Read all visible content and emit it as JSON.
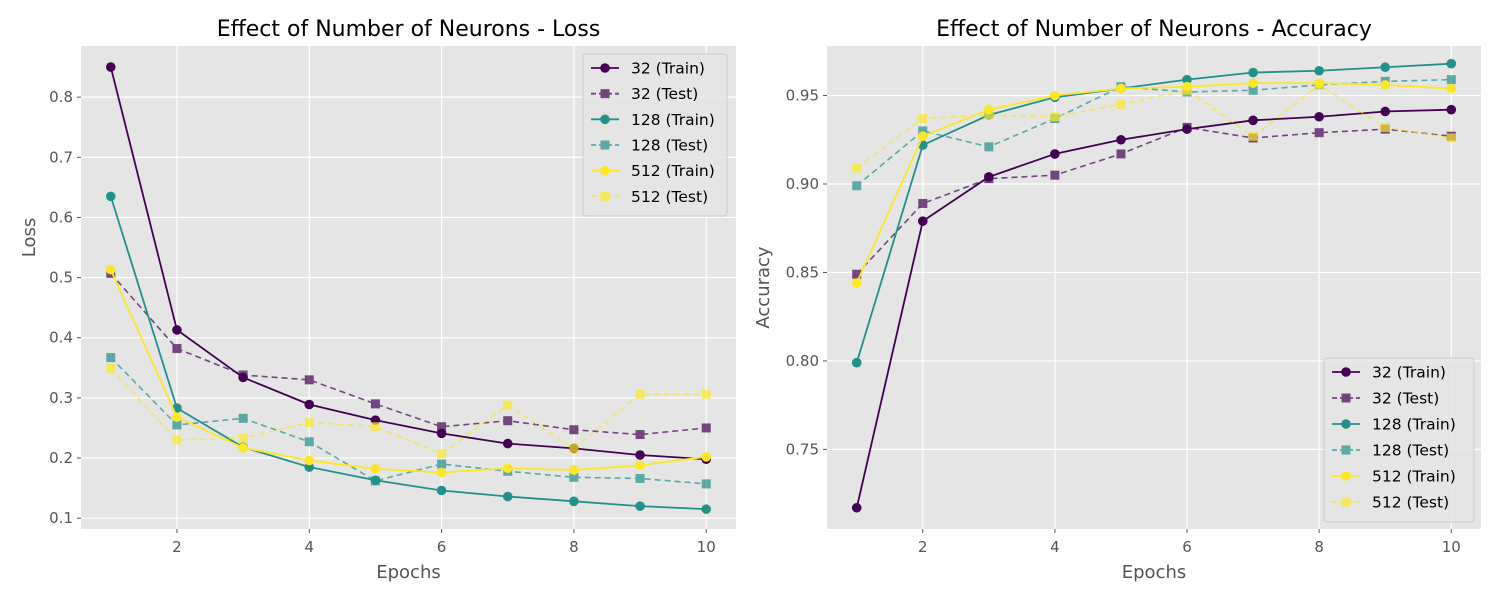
{
  "chart_data": [
    {
      "type": "line",
      "title": "Effect of Number of Neurons - Loss",
      "xlabel": "Epochs",
      "ylabel": "Loss",
      "xlim": [
        0.55,
        10.45
      ],
      "ylim": [
        0.082,
        0.885
      ],
      "xticks": [
        2,
        4,
        6,
        8,
        10
      ],
      "yticks": [
        0.1,
        0.2,
        0.3,
        0.4,
        0.5,
        0.6,
        0.7,
        0.8
      ],
      "grid": true,
      "legend_position": "upper right",
      "x": [
        1,
        2,
        3,
        4,
        5,
        6,
        7,
        8,
        9,
        10
      ],
      "series": [
        {
          "name": "32 (Train)",
          "color": "#440154",
          "style": "solid",
          "marker": "circle",
          "values": [
            0.85,
            0.413,
            0.334,
            0.289,
            0.263,
            0.241,
            0.224,
            0.216,
            0.205,
            0.198
          ]
        },
        {
          "name": "32 (Test)",
          "color": "#440154",
          "style": "dashed",
          "marker": "square",
          "values": [
            0.507,
            0.382,
            0.338,
            0.33,
            0.29,
            0.252,
            0.262,
            0.247,
            0.239,
            0.25
          ]
        },
        {
          "name": "128 (Train)",
          "color": "#21918c",
          "style": "solid",
          "marker": "circle",
          "values": [
            0.635,
            0.283,
            0.218,
            0.185,
            0.163,
            0.146,
            0.136,
            0.128,
            0.12,
            0.115
          ]
        },
        {
          "name": "128 (Test)",
          "color": "#21918c",
          "style": "dashed",
          "marker": "square",
          "values": [
            0.367,
            0.255,
            0.266,
            0.227,
            0.162,
            0.19,
            0.178,
            0.168,
            0.166,
            0.157
          ]
        },
        {
          "name": "512 (Train)",
          "color": "#fde725",
          "style": "solid",
          "marker": "circle",
          "values": [
            0.513,
            0.268,
            0.217,
            0.196,
            0.182,
            0.176,
            0.183,
            0.18,
            0.188,
            0.202
          ]
        },
        {
          "name": "512 (Test)",
          "color": "#fde725",
          "style": "dashed",
          "marker": "square",
          "values": [
            0.349,
            0.23,
            0.233,
            0.259,
            0.252,
            0.207,
            0.288,
            0.216,
            0.306,
            0.306
          ]
        }
      ]
    },
    {
      "type": "line",
      "title": "Effect of Number of Neurons - Accuracy",
      "xlabel": "Epochs",
      "ylabel": "Accuracy",
      "xlim": [
        0.55,
        10.45
      ],
      "ylim": [
        0.705,
        0.978
      ],
      "xticks": [
        2,
        4,
        6,
        8,
        10
      ],
      "yticks": [
        0.75,
        0.8,
        0.85,
        0.9,
        0.95
      ],
      "grid": true,
      "legend_position": "lower right",
      "x": [
        1,
        2,
        3,
        4,
        5,
        6,
        7,
        8,
        9,
        10
      ],
      "series": [
        {
          "name": "32 (Train)",
          "color": "#440154",
          "style": "solid",
          "marker": "circle",
          "values": [
            0.717,
            0.879,
            0.904,
            0.917,
            0.925,
            0.931,
            0.936,
            0.938,
            0.941,
            0.942
          ]
        },
        {
          "name": "32 (Test)",
          "color": "#440154",
          "style": "dashed",
          "marker": "square",
          "values": [
            0.849,
            0.889,
            0.903,
            0.905,
            0.917,
            0.932,
            0.926,
            0.929,
            0.931,
            0.927
          ]
        },
        {
          "name": "128 (Train)",
          "color": "#21918c",
          "style": "solid",
          "marker": "circle",
          "values": [
            0.799,
            0.922,
            0.939,
            0.949,
            0.954,
            0.959,
            0.963,
            0.964,
            0.966,
            0.968
          ]
        },
        {
          "name": "128 (Test)",
          "color": "#21918c",
          "style": "dashed",
          "marker": "square",
          "values": [
            0.899,
            0.93,
            0.921,
            0.937,
            0.955,
            0.952,
            0.953,
            0.956,
            0.958,
            0.959
          ]
        },
        {
          "name": "512 (Train)",
          "color": "#fde725",
          "style": "solid",
          "marker": "circle",
          "values": [
            0.844,
            0.927,
            0.942,
            0.95,
            0.954,
            0.955,
            0.957,
            0.957,
            0.956,
            0.954
          ]
        },
        {
          "name": "512 (Test)",
          "color": "#fde725",
          "style": "dashed",
          "marker": "square",
          "values": [
            0.909,
            0.937,
            0.939,
            0.938,
            0.945,
            0.953,
            0.927,
            0.956,
            0.932,
            0.926
          ]
        }
      ]
    }
  ]
}
